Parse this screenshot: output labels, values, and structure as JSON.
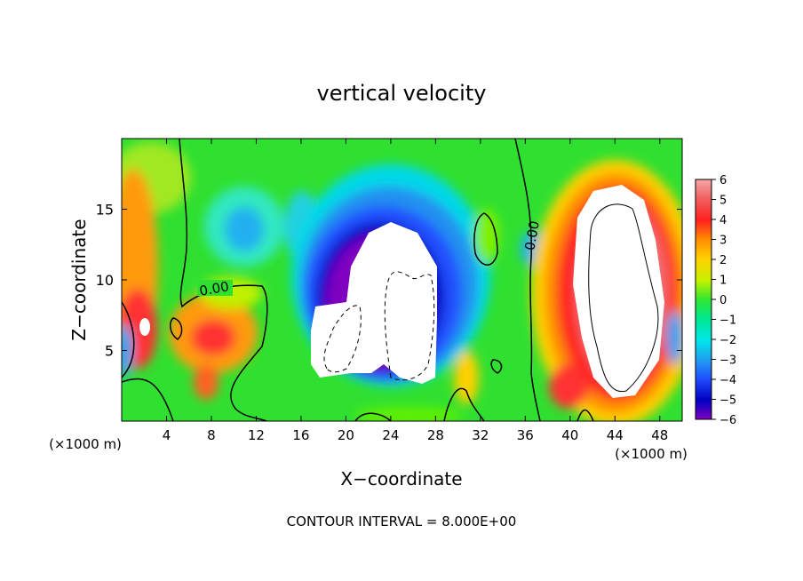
{
  "chart_data": {
    "type": "heatmap",
    "title": "vertical velocity",
    "xlabel": "X−coordinate",
    "ylabel": "Z−coordinate",
    "x_unit": "(×1000 m)",
    "y_unit": "(×1000 m)",
    "xlim": [
      0,
      50
    ],
    "ylim": [
      0,
      20
    ],
    "x_ticks": [
      "4",
      "8",
      "12",
      "16",
      "20",
      "24",
      "28",
      "32",
      "36",
      "40",
      "44",
      "48"
    ],
    "y_ticks": [
      "5",
      "10",
      "15"
    ],
    "colorbar": {
      "range": [
        -6,
        6
      ],
      "tick_labels": [
        "6",
        "5",
        "4",
        "3",
        "2",
        "1",
        "0",
        "−1",
        "−2",
        "−3",
        "−4",
        "−5",
        "−6"
      ]
    },
    "contour_labels": [
      "0.00",
      "0.00"
    ],
    "footer": "CONTOUR INTERVAL = 8.000E+00",
    "features": [
      {
        "kind": "updraft",
        "x": 43.5,
        "z": 10.5,
        "peak": 6
      },
      {
        "kind": "updraft",
        "x": 1.8,
        "z": 6.5,
        "peak": 6
      },
      {
        "kind": "downdraft",
        "x": 23.5,
        "z": 8.5,
        "peak": -6
      }
    ]
  }
}
